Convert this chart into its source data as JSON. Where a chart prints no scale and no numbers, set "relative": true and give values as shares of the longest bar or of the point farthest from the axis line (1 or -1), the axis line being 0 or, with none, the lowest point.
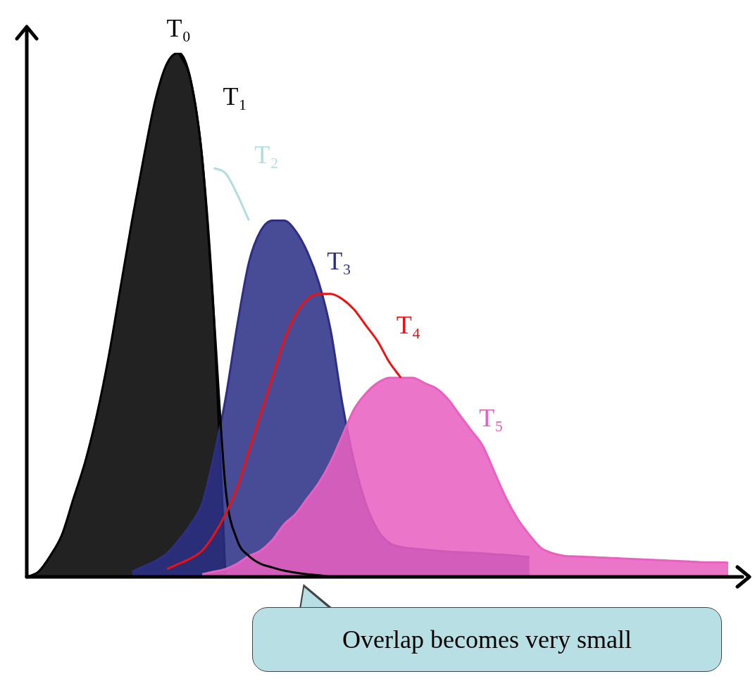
{
  "chart_data": {
    "type": "line",
    "relative": true,
    "legend": false,
    "grid": false,
    "marker": "none",
    "categories": [
      null,
      null,
      null,
      null,
      null,
      null,
      null,
      null,
      null,
      null,
      null,
      null,
      null,
      null,
      null,
      null,
      null,
      null,
      null,
      null,
      null,
      null,
      null,
      null,
      null,
      null,
      null,
      null,
      null,
      null,
      null,
      null,
      null,
      null,
      null,
      null,
      null,
      null,
      null,
      null,
      null,
      null,
      null,
      null,
      null,
      null,
      null,
      null,
      null,
      null,
      null,
      null,
      null,
      null,
      null,
      null,
      null,
      null,
      null,
      null,
      null
    ],
    "series": [
      {
        "name": "T₀",
        "type": "area",
        "color": "#000000",
        "values": [
          0,
          0.01,
          0.04,
          0.08,
          0.15,
          0.22,
          0.31,
          0.42,
          0.55,
          0.68,
          0.8,
          0.91,
          0.98,
          1,
          0.95,
          0.8,
          0.5,
          0,
          null,
          null,
          null,
          null,
          null,
          null,
          null,
          null,
          null,
          null,
          null,
          null,
          null,
          null,
          null,
          null,
          null,
          null,
          null,
          null,
          null,
          null,
          null,
          null,
          null,
          null,
          null,
          null,
          null,
          null,
          null,
          null,
          null,
          null,
          null,
          null,
          null,
          null,
          null,
          null,
          null,
          null,
          null
        ]
      },
      {
        "name": "T₁",
        "type": "line",
        "color": "#000000",
        "values": [
          null,
          null,
          null,
          null,
          null,
          null,
          null,
          null,
          null,
          null,
          null,
          null,
          null,
          1,
          0.95,
          0.8,
          0.5,
          0.17,
          0.07,
          0.04,
          0.025,
          0.018,
          0.012,
          0.008,
          0.005,
          0.003,
          0,
          null,
          null,
          null,
          null,
          null,
          null,
          null,
          null,
          null,
          null,
          null,
          null,
          null,
          null,
          null,
          null,
          null,
          null,
          null,
          null,
          null,
          null,
          null,
          null,
          null,
          null,
          null,
          null,
          null,
          null,
          null,
          null,
          null,
          null
        ]
      },
      {
        "name": "T₂",
        "type": "line",
        "color": "#b0dede",
        "values": [
          null,
          null,
          null,
          null,
          null,
          null,
          null,
          null,
          null,
          null,
          null,
          null,
          null,
          null,
          null,
          null,
          0.78,
          0.77,
          0.73,
          0.68,
          null,
          null,
          null,
          null,
          null,
          null,
          null,
          null,
          null,
          null,
          null,
          null,
          null,
          null,
          null,
          null,
          null,
          null,
          null,
          null,
          null,
          null,
          null,
          null,
          null,
          null,
          null,
          null,
          null,
          null,
          null,
          null,
          null,
          null,
          null,
          null,
          null,
          null,
          null,
          null,
          null
        ]
      },
      {
        "name": "T₃",
        "type": "area",
        "color": "#2c2f85",
        "values": [
          null,
          null,
          null,
          null,
          null,
          null,
          null,
          null,
          null,
          0.01,
          0.02,
          0.03,
          0.045,
          0.07,
          0.1,
          0.14,
          0.23,
          0.34,
          0.48,
          0.6,
          0.66,
          0.68,
          0.68,
          0.66,
          0.62,
          0.56,
          0.47,
          0.33,
          0.22,
          0.14,
          0.09,
          0.065,
          0.057,
          0.054,
          0.052,
          0.05,
          0.048,
          0.047,
          0.046,
          0.045,
          0.043,
          0.042,
          0.04,
          0.038,
          null,
          null,
          null,
          null,
          null,
          null,
          null,
          null,
          null,
          null,
          null,
          null,
          null,
          null,
          null,
          null,
          null
        ]
      },
      {
        "name": "T₄",
        "type": "line",
        "color": "#ee1111",
        "values": [
          null,
          null,
          null,
          null,
          null,
          null,
          null,
          null,
          null,
          null,
          null,
          null,
          0.015,
          0.025,
          0.035,
          0.05,
          0.08,
          0.12,
          0.17,
          0.24,
          0.31,
          0.38,
          0.45,
          0.5,
          0.53,
          0.54,
          0.54,
          0.53,
          0.51,
          0.48,
          0.45,
          0.41,
          0.38,
          null,
          null,
          null,
          null,
          null,
          null,
          null,
          null,
          null,
          null,
          null,
          null,
          null,
          null,
          null,
          null,
          null,
          null,
          null,
          null,
          null,
          null,
          null,
          null,
          null,
          null,
          null,
          null
        ]
      },
      {
        "name": "T₅",
        "type": "area",
        "color": "#e860c0",
        "values": [
          null,
          null,
          null,
          null,
          null,
          null,
          null,
          null,
          null,
          null,
          null,
          null,
          null,
          null,
          null,
          0.005,
          0.01,
          0.015,
          0.025,
          0.04,
          0.05,
          0.07,
          0.1,
          0.12,
          0.15,
          0.18,
          0.22,
          0.27,
          0.32,
          0.35,
          0.37,
          0.38,
          0.38,
          0.38,
          0.37,
          0.36,
          0.34,
          0.31,
          0.28,
          0.25,
          0.2,
          0.15,
          0.11,
          0.08,
          0.055,
          0.045,
          0.04,
          0.039,
          0.038,
          0.037,
          0.036,
          0.035,
          0.034,
          0.033,
          0.032,
          0.031,
          0.03,
          0.029,
          0.028,
          0.028,
          0.027
        ]
      }
    ],
    "annotations": [
      "Overlap becomes very small"
    ]
  }
}
